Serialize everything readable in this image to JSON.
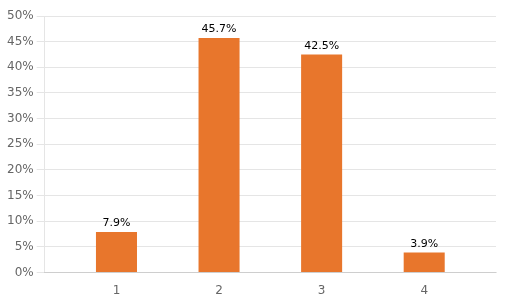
{
  "chart_data": {
    "type": "bar",
    "x": [
      1,
      2,
      3,
      4
    ],
    "values": [
      7.9,
      45.7,
      42.5,
      3.9
    ],
    "value_labels": [
      "7.9%",
      "45.7%",
      "42.5%",
      "3.9%"
    ],
    "data_labels": true,
    "color": "#E8762C",
    "xlim": [
      0.3,
      4.7
    ],
    "xticks": [
      1,
      2,
      3,
      4
    ],
    "ylim": [
      0,
      50
    ],
    "yticks": [
      {
        "value": 0,
        "label": "0%"
      },
      {
        "value": 5,
        "label": "5%"
      },
      {
        "value": 10,
        "label": "10%"
      },
      {
        "value": 15,
        "label": "15%"
      },
      {
        "value": 20,
        "label": "20%"
      },
      {
        "value": 25,
        "label": "25%"
      },
      {
        "value": 30,
        "label": "30%"
      },
      {
        "value": 35,
        "label": "35%"
      },
      {
        "value": 40,
        "label": "40%"
      },
      {
        "value": 45,
        "label": "45%"
      },
      {
        "value": 50,
        "label": "50%"
      }
    ],
    "grid": true
  }
}
